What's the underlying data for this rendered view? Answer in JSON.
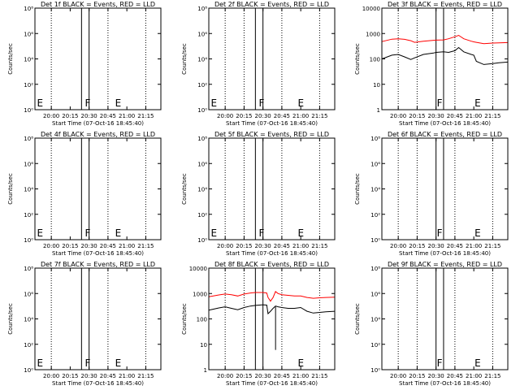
{
  "chart_data": [
    {
      "type": "line",
      "title": "Det 1f BLACK = Events, RED = LLD",
      "xlabel": "Start Time (07-Oct-16 18:45:40)",
      "ylabel": "Counts/sec",
      "yscale": "log",
      "ylim": [
        1,
        100000000
      ],
      "yticks": [
        {
          "v": 1,
          "t": "10⁰"
        },
        {
          "v": 100,
          "t": "10²"
        },
        {
          "v": 10000,
          "t": "10⁴"
        },
        {
          "v": 1000000,
          "t": "10⁶"
        },
        {
          "v": 100000000,
          "t": "10⁸"
        }
      ],
      "xlim": [
        "19:47",
        "21:27"
      ],
      "xticks": [
        "20:00",
        "20:15",
        "20:30",
        "20:45",
        "21:00",
        "21:15"
      ],
      "dotted_vlines": [
        "20:00",
        "20:45",
        "21:15"
      ],
      "solid_vlines": [
        "20:24",
        "20:30"
      ],
      "markers": [
        {
          "text": "E",
          "x": "19:48"
        },
        {
          "text": "F",
          "x": "20:26"
        },
        {
          "text": "E",
          "x": "20:50"
        }
      ],
      "series": []
    },
    {
      "type": "line",
      "title": "Det 2f BLACK = Events, RED = LLD",
      "xlabel": "Start Time (07-Oct-16 18:45:40)",
      "ylabel": "Counts/sec",
      "yscale": "log",
      "ylim": [
        1,
        100000000
      ],
      "yticks": [
        {
          "v": 1,
          "t": "10⁰"
        },
        {
          "v": 100,
          "t": "10²"
        },
        {
          "v": 10000,
          "t": "10⁴"
        },
        {
          "v": 1000000,
          "t": "10⁶"
        },
        {
          "v": 100000000,
          "t": "10⁸"
        }
      ],
      "xlim": [
        "19:47",
        "21:27"
      ],
      "xticks": [
        "20:00",
        "20:15",
        "20:30",
        "20:45",
        "21:00",
        "21:15"
      ],
      "dotted_vlines": [
        "20:00",
        "20:15",
        "20:45",
        "21:15"
      ],
      "solid_vlines": [
        "20:24",
        "20:30"
      ],
      "markers": [
        {
          "text": "E",
          "x": "19:48"
        },
        {
          "text": "F",
          "x": "20:26"
        },
        {
          "text": "E",
          "x": "20:57"
        }
      ],
      "series": []
    },
    {
      "type": "line",
      "title": "Det 3f BLACK = Events, RED = LLD",
      "xlabel": "Start Time (07-Oct-16 18:45:40)",
      "ylabel": "Counts/sec",
      "yscale": "log",
      "ylim": [
        1,
        10000
      ],
      "yticks": [
        {
          "v": 1,
          "t": "1"
        },
        {
          "v": 10,
          "t": "10"
        },
        {
          "v": 100,
          "t": "100"
        },
        {
          "v": 1000,
          "t": "1000"
        },
        {
          "v": 10000,
          "t": "10000"
        }
      ],
      "xlim": [
        "19:47",
        "21:27"
      ],
      "xticks": [
        "20:00",
        "20:15",
        "20:30",
        "20:45",
        "21:00",
        "21:15"
      ],
      "dotted_vlines": [
        "20:00",
        "20:15",
        "20:45",
        "21:15"
      ],
      "solid_vlines": [
        "20:30",
        "20:36"
      ],
      "markers": [
        {
          "text": "F",
          "x": "20:30"
        },
        {
          "text": "E",
          "x": "21:00"
        }
      ],
      "series": [
        {
          "name": "Events",
          "color": "#000000",
          "x": [
            "19:47",
            "19:55",
            "20:00",
            "20:05",
            "20:10",
            "20:13",
            "20:20",
            "20:28",
            "20:30",
            "20:36",
            "20:40",
            "20:45",
            "20:48",
            "20:52",
            "20:58",
            "21:00",
            "21:02",
            "21:08",
            "21:15",
            "21:20",
            "21:27"
          ],
          "y": [
            100,
            140,
            150,
            120,
            95,
            110,
            150,
            170,
            180,
            190,
            180,
            210,
            280,
            190,
            150,
            140,
            80,
            60,
            65,
            70,
            75
          ]
        },
        {
          "name": "LLD",
          "color": "#ff0000",
          "x": [
            "19:47",
            "19:55",
            "20:00",
            "20:05",
            "20:10",
            "20:13",
            "20:20",
            "20:28",
            "20:30",
            "20:36",
            "20:40",
            "20:45",
            "20:48",
            "20:52",
            "20:58",
            "21:00",
            "21:02",
            "21:08",
            "21:15",
            "21:20",
            "21:27"
          ],
          "y": [
            480,
            600,
            620,
            590,
            520,
            450,
            500,
            540,
            550,
            560,
            620,
            750,
            850,
            620,
            500,
            470,
            450,
            400,
            420,
            430,
            440
          ]
        }
      ]
    },
    {
      "type": "line",
      "title": "Det 4f BLACK = Events, RED = LLD",
      "xlabel": "Start Time (07-Oct-16 18:45:40)",
      "ylabel": "Counts/sec",
      "yscale": "log",
      "ylim": [
        1,
        100000000
      ],
      "yticks": [
        {
          "v": 1,
          "t": "10⁰"
        },
        {
          "v": 100,
          "t": "10²"
        },
        {
          "v": 10000,
          "t": "10⁴"
        },
        {
          "v": 1000000,
          "t": "10⁶"
        },
        {
          "v": 100000000,
          "t": "10⁸"
        }
      ],
      "xlim": [
        "19:47",
        "21:27"
      ],
      "xticks": [
        "20:00",
        "20:15",
        "20:30",
        "20:45",
        "21:00",
        "21:15"
      ],
      "dotted_vlines": [
        "20:00",
        "20:45",
        "21:15"
      ],
      "solid_vlines": [
        "20:24",
        "20:30"
      ],
      "markers": [
        {
          "text": "E",
          "x": "19:48"
        },
        {
          "text": "F",
          "x": "20:26"
        },
        {
          "text": "E",
          "x": "20:50"
        }
      ],
      "series": []
    },
    {
      "type": "line",
      "title": "Det 5f BLACK = Events, RED = LLD",
      "xlabel": "Start Time (07-Oct-16 18:45:40)",
      "ylabel": "Counts/sec",
      "yscale": "log",
      "ylim": [
        1,
        100000000
      ],
      "yticks": [
        {
          "v": 1,
          "t": "10⁰"
        },
        {
          "v": 100,
          "t": "10²"
        },
        {
          "v": 10000,
          "t": "10⁴"
        },
        {
          "v": 1000000,
          "t": "10⁶"
        },
        {
          "v": 100000000,
          "t": "10⁸"
        }
      ],
      "xlim": [
        "19:47",
        "21:27"
      ],
      "xticks": [
        "20:00",
        "20:15",
        "20:30",
        "20:45",
        "21:00",
        "21:15"
      ],
      "dotted_vlines": [
        "20:00",
        "20:15",
        "20:45",
        "21:15"
      ],
      "solid_vlines": [
        "20:24",
        "20:30"
      ],
      "markers": [
        {
          "text": "E",
          "x": "19:48"
        },
        {
          "text": "F",
          "x": "20:26"
        },
        {
          "text": "E",
          "x": "20:57"
        }
      ],
      "series": []
    },
    {
      "type": "line",
      "title": "Det 6f BLACK = Events, RED = LLD",
      "xlabel": "Start Time (07-Oct-16 18:45:40)",
      "ylabel": "Counts/sec",
      "yscale": "log",
      "ylim": [
        1,
        100000000
      ],
      "yticks": [
        {
          "v": 1,
          "t": "10⁰"
        },
        {
          "v": 100,
          "t": "10²"
        },
        {
          "v": 10000,
          "t": "10⁴"
        },
        {
          "v": 1000000,
          "t": "10⁶"
        },
        {
          "v": 100000000,
          "t": "10⁸"
        }
      ],
      "xlim": [
        "19:47",
        "21:27"
      ],
      "xticks": [
        "20:00",
        "20:15",
        "20:30",
        "20:45",
        "21:00",
        "21:15"
      ],
      "dotted_vlines": [
        "20:00",
        "20:15",
        "20:45",
        "21:15"
      ],
      "solid_vlines": [
        "20:30",
        "20:36"
      ],
      "markers": [
        {
          "text": "F",
          "x": "20:30"
        },
        {
          "text": "E",
          "x": "21:00"
        }
      ],
      "series": []
    },
    {
      "type": "line",
      "title": "Det 7f BLACK = Events, RED = LLD",
      "xlabel": "Start Time (07-Oct-16 18:45:40)",
      "ylabel": "Counts/sec",
      "yscale": "log",
      "ylim": [
        1,
        100000000
      ],
      "yticks": [
        {
          "v": 1,
          "t": "10⁰"
        },
        {
          "v": 100,
          "t": "10²"
        },
        {
          "v": 10000,
          "t": "10⁴"
        },
        {
          "v": 1000000,
          "t": "10⁶"
        },
        {
          "v": 100000000,
          "t": "10⁸"
        }
      ],
      "xlim": [
        "19:47",
        "21:27"
      ],
      "xticks": [
        "20:00",
        "20:15",
        "20:30",
        "20:45",
        "21:00",
        "21:15"
      ],
      "dotted_vlines": [
        "20:00",
        "20:45",
        "21:15"
      ],
      "solid_vlines": [
        "20:24",
        "20:30"
      ],
      "markers": [
        {
          "text": "E",
          "x": "19:48"
        },
        {
          "text": "F",
          "x": "20:26"
        },
        {
          "text": "E",
          "x": "20:50"
        }
      ],
      "series": []
    },
    {
      "type": "line",
      "title": "Det 8f BLACK = Events, RED = LLD",
      "xlabel": "Start Time (07-Oct-16 18:45:40)",
      "ylabel": "Counts/sec",
      "yscale": "log",
      "ylim": [
        1,
        10000
      ],
      "yticks": [
        {
          "v": 1,
          "t": "1"
        },
        {
          "v": 10,
          "t": "10"
        },
        {
          "v": 100,
          "t": "100"
        },
        {
          "v": 1000,
          "t": "1000"
        },
        {
          "v": 10000,
          "t": "10000"
        }
      ],
      "xlim": [
        "19:47",
        "21:27"
      ],
      "xticks": [
        "20:00",
        "20:15",
        "20:30",
        "20:45",
        "21:00",
        "21:15"
      ],
      "dotted_vlines": [
        "20:00",
        "20:15",
        "20:45",
        "21:15"
      ],
      "solid_vlines": [
        "20:24",
        "20:30"
      ],
      "markers": [
        {
          "text": "E",
          "x": "20:57"
        }
      ],
      "series": [
        {
          "name": "Events",
          "color": "#000000",
          "x": [
            "19:47",
            "19:55",
            "20:00",
            "20:05",
            "20:10",
            "20:15",
            "20:20",
            "20:24",
            "20:30",
            "20:33",
            "20:34",
            "20:36",
            "20:38",
            "20:40",
            "20:42",
            "20:45",
            "20:50",
            "20:55",
            "21:00",
            "21:05",
            "21:10",
            "21:15",
            "21:20",
            "21:27"
          ],
          "y": [
            220,
            270,
            300,
            260,
            230,
            280,
            320,
            340,
            360,
            350,
            160,
            200,
            260,
            320,
            300,
            280,
            260,
            260,
            280,
            200,
            170,
            180,
            190,
            200
          ]
        },
        {
          "name": "LLD",
          "color": "#ff0000",
          "x": [
            "19:47",
            "19:55",
            "20:00",
            "20:05",
            "20:10",
            "20:15",
            "20:20",
            "20:24",
            "20:30",
            "20:33",
            "20:34",
            "20:36",
            "20:38",
            "20:40",
            "20:42",
            "20:45",
            "20:50",
            "20:55",
            "21:00",
            "21:05",
            "21:10",
            "21:15",
            "21:20",
            "21:27"
          ],
          "y": [
            750,
            880,
            950,
            900,
            800,
            950,
            1050,
            1100,
            1100,
            1050,
            700,
            500,
            700,
            1200,
            1000,
            900,
            850,
            800,
            800,
            700,
            650,
            680,
            700,
            720
          ]
        }
      ],
      "spike": {
        "x": "20:40",
        "y_from": 300,
        "y_to": 6
      }
    },
    {
      "type": "line",
      "title": "Det 9f BLACK = Events, RED = LLD",
      "xlabel": "Start Time (07-Oct-16 18:45:40)",
      "ylabel": "Counts/sec",
      "yscale": "log",
      "ylim": [
        1,
        100000000
      ],
      "yticks": [
        {
          "v": 1,
          "t": "10⁰"
        },
        {
          "v": 100,
          "t": "10²"
        },
        {
          "v": 10000,
          "t": "10⁴"
        },
        {
          "v": 1000000,
          "t": "10⁶"
        },
        {
          "v": 100000000,
          "t": "10⁸"
        }
      ],
      "xlim": [
        "19:47",
        "21:27"
      ],
      "xticks": [
        "20:00",
        "20:15",
        "20:30",
        "20:45",
        "21:00",
        "21:15"
      ],
      "dotted_vlines": [
        "20:00",
        "20:15",
        "20:45",
        "21:15"
      ],
      "solid_vlines": [
        "20:30",
        "20:36"
      ],
      "markers": [
        {
          "text": "F",
          "x": "20:30"
        },
        {
          "text": "E",
          "x": "21:00"
        }
      ],
      "series": []
    }
  ]
}
